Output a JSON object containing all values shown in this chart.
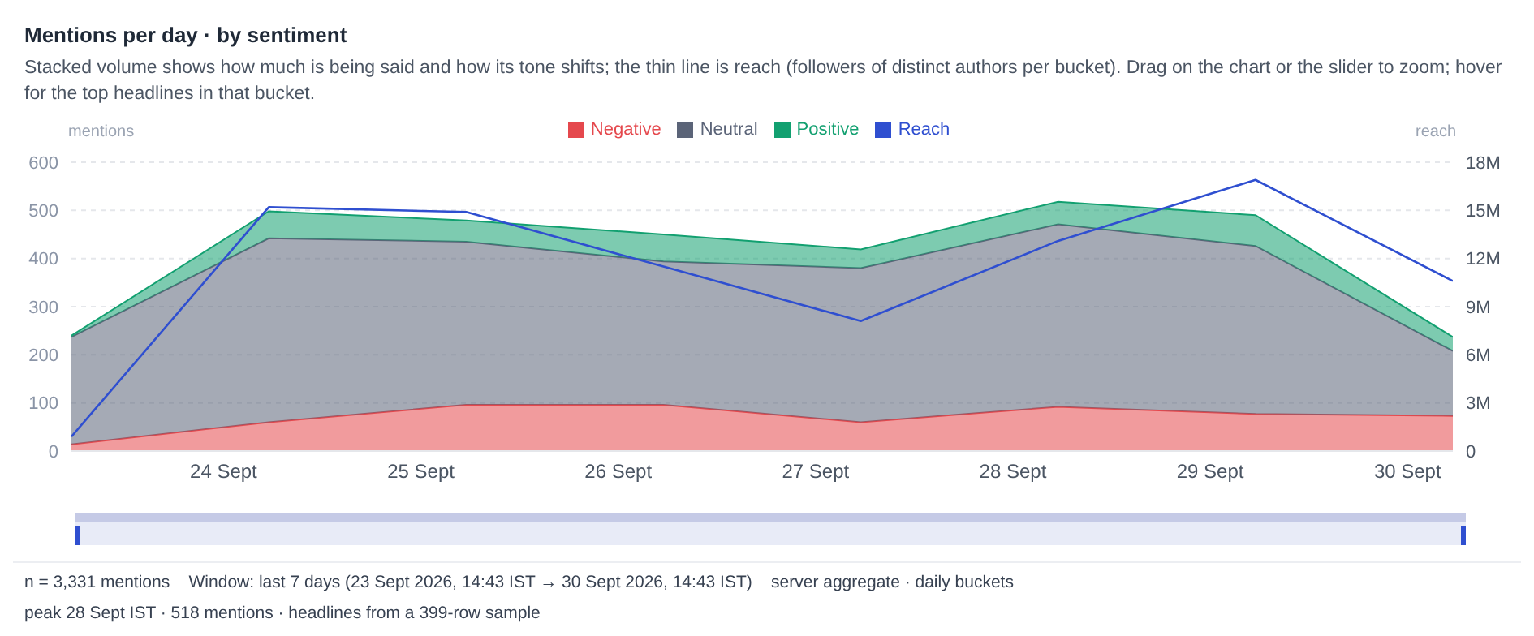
{
  "chart_data": {
    "type": "area",
    "stacked": true,
    "title": "Mentions per day · by sentiment",
    "subtitle": "Stacked volume shows how much is being said and how its tone shifts; the thin line is reach (followers of distinct authors per bucket). Drag on the chart or the slider to zoom; hover for the top headlines in that bucket.",
    "ylabel": "mentions",
    "y2label": "reach",
    "x": [
      "2026-09-23T05:30",
      "2026-09-24T05:30",
      "2026-09-25T05:30",
      "2026-09-26T05:30",
      "2026-09-27T05:30",
      "2026-09-28T05:30",
      "2026-09-29T05:30",
      "2026-09-30T05:30"
    ],
    "xlim": [
      "2026-09-23T05:30",
      "2026-09-30T05:30"
    ],
    "xticks": [
      {
        "value": "2026-09-24",
        "label": "24 Sept"
      },
      {
        "value": "2026-09-25",
        "label": "25 Sept"
      },
      {
        "value": "2026-09-26",
        "label": "26 Sept"
      },
      {
        "value": "2026-09-27",
        "label": "27 Sept"
      },
      {
        "value": "2026-09-28",
        "label": "28 Sept"
      },
      {
        "value": "2026-09-29",
        "label": "29 Sept"
      },
      {
        "value": "2026-09-30",
        "label": "30 Sept"
      }
    ],
    "ylim": [
      0,
      600
    ],
    "yticks": [
      0,
      100,
      200,
      300,
      400,
      500,
      600
    ],
    "y2lim": [
      0,
      18000000
    ],
    "y2ticks": [
      0,
      {
        "value": 3000000,
        "label": "3M"
      },
      {
        "value": 6000000,
        "label": "6M"
      },
      {
        "value": 9000000,
        "label": "9M"
      },
      {
        "value": 12000000,
        "label": "12M"
      },
      {
        "value": 15000000,
        "label": "15M"
      },
      {
        "value": 18000000,
        "label": "18M"
      }
    ],
    "series": [
      {
        "name": "Negative",
        "color": "#e5484d",
        "values": [
          14,
          60,
          96,
          96,
          60,
          92,
          77,
          73
        ]
      },
      {
        "name": "Neutral",
        "color": "#5b6478",
        "values": [
          223,
          382,
          339,
          298,
          320,
          379,
          349,
          135
        ]
      },
      {
        "name": "Positive",
        "color": "#12a070",
        "values": [
          3,
          56,
          44,
          56,
          39,
          47,
          64,
          29
        ]
      },
      {
        "name": "Reach",
        "type": "line",
        "axis": "y2",
        "color": "#2f4fd0",
        "values": [
          900000,
          15200000,
          14900000,
          11500000,
          8100000,
          13100000,
          16900000,
          10600000
        ]
      }
    ],
    "grid": "y",
    "legend": "top",
    "marker": "none",
    "line_style": "solid",
    "annotations": [
      "n = 3,331 mentions    Window: last 7 days (23 Sept 2026, 14:43 IST → 30 Sept 2026, 14:43 IST)    server aggregate · daily buckets",
      "peak 28 Sept IST · 518 mentions · headlines from a 399-row sample"
    ]
  }
}
